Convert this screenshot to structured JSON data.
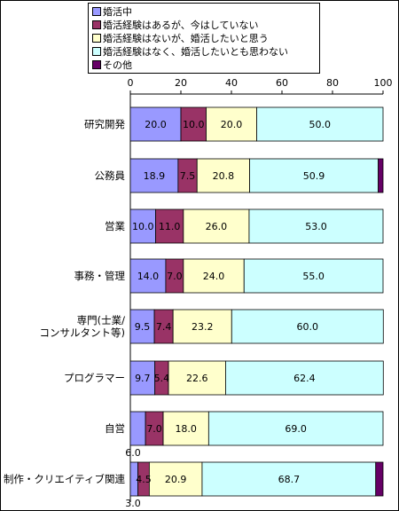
{
  "chart_data": {
    "type": "bar",
    "orientation": "horizontal",
    "stacked": true,
    "xlim": [
      0,
      100
    ],
    "x_ticks": [
      "0",
      "20",
      "40",
      "60",
      "80",
      "100"
    ],
    "grid": false,
    "legend_position": "top",
    "categories": [
      "研究開発",
      "公務員",
      "営業",
      "事務・管理",
      "専門(士業/\nコンサルタント等)",
      "プログラマー",
      "自営",
      "制作・クリエイティブ関連"
    ],
    "series": [
      {
        "name": "婚活中",
        "color": "#9999ff",
        "values": [
          20.0,
          18.9,
          10.0,
          14.0,
          9.5,
          9.7,
          6.0,
          3.0
        ]
      },
      {
        "name": "婚活経験はあるが、今はしていない",
        "color": "#993366",
        "values": [
          10.0,
          7.5,
          11.0,
          7.0,
          7.4,
          5.4,
          7.0,
          4.5
        ]
      },
      {
        "name": "婚活経験はないが、婚活したいと思う",
        "color": "#ffffcc",
        "values": [
          20.0,
          20.8,
          26.0,
          24.0,
          23.2,
          22.6,
          18.0,
          20.9
        ]
      },
      {
        "name": "婚活経験はなく、婚活したいとも思わない",
        "color": "#ccffff",
        "values": [
          50.0,
          50.9,
          53.0,
          55.0,
          60.0,
          62.4,
          69.0,
          68.7
        ]
      },
      {
        "name": "その他",
        "color": "#660066",
        "values": [
          0.0,
          1.9,
          0.0,
          0.0,
          0.0,
          0.0,
          0.0,
          2.9
        ]
      }
    ],
    "value_labels": [
      [
        "20.0",
        "10.0",
        "20.0",
        "50.0"
      ],
      [
        "18.9",
        "7.5",
        "20.8",
        "50.9"
      ],
      [
        "10.0",
        "11.0",
        "26.0",
        "53.0"
      ],
      [
        "14.0",
        "7.0",
        "24.0",
        "55.0"
      ],
      [
        "9.5",
        "7.4",
        "23.2",
        "60.0"
      ],
      [
        "9.7",
        "5.4",
        "22.6",
        "62.4"
      ],
      [
        "6.0",
        "7.0",
        "18.0",
        "69.0"
      ],
      [
        "3.0",
        "4.5",
        "20.9",
        "68.7"
      ]
    ]
  }
}
